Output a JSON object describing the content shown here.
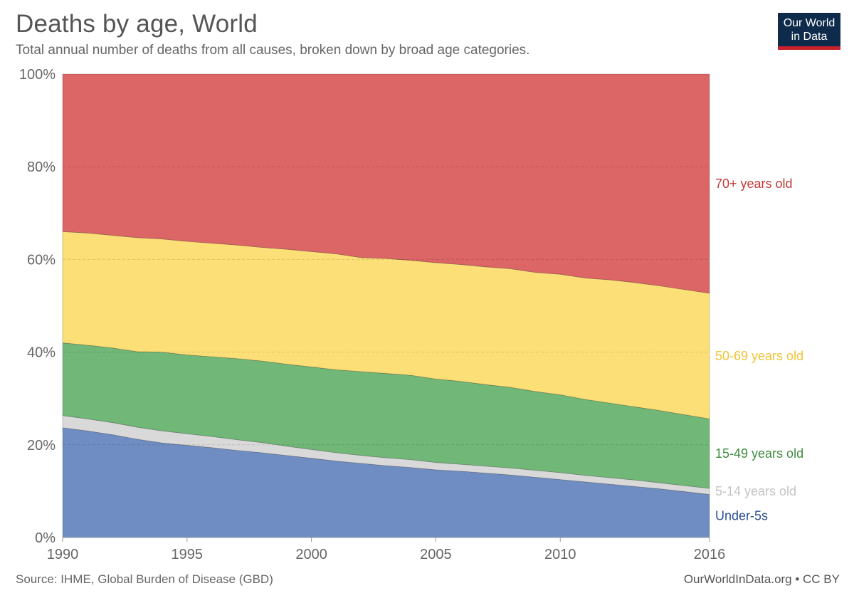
{
  "header": {
    "title": "Deaths by age, World",
    "subtitle": "Total annual number of deaths from all causes, broken down by broad age categories."
  },
  "logo": {
    "line1": "Our World",
    "line2": "in Data"
  },
  "footer": {
    "source": "Source: IHME, Global Burden of Disease (GBD)",
    "credit": "OurWorldInData.org • CC BY"
  },
  "colors": {
    "under5": "#6f8dc2",
    "age5_14": "#d9d9d9",
    "age15_49": "#70b778",
    "age50_69": "#fddf77",
    "age70plus": "#dc6566"
  },
  "chart_data": {
    "type": "area",
    "stacked": true,
    "normalized": true,
    "title": "Deaths by age, World",
    "xlabel": "",
    "ylabel": "",
    "xlim": [
      1990,
      2016
    ],
    "ylim": [
      0,
      100
    ],
    "x": [
      1990,
      1991,
      1992,
      1993,
      1994,
      1995,
      1996,
      1997,
      1998,
      1999,
      2000,
      2001,
      2002,
      2003,
      2004,
      2005,
      2006,
      2007,
      2008,
      2009,
      2010,
      2011,
      2012,
      2013,
      2014,
      2015,
      2016
    ],
    "xticks": [
      "1990",
      "1995",
      "2000",
      "2005",
      "2010",
      "2016"
    ],
    "yticks": [
      "0%",
      "20%",
      "40%",
      "60%",
      "80%",
      "100%"
    ],
    "grid": true,
    "legend": "right",
    "series": [
      {
        "name": "Under-5s",
        "key": "under5",
        "values": [
          23.7,
          23.0,
          22.2,
          21.2,
          20.4,
          19.9,
          19.4,
          18.8,
          18.3,
          17.7,
          17.1,
          16.5,
          16.0,
          15.5,
          15.1,
          14.6,
          14.3,
          13.9,
          13.5,
          13.0,
          12.5,
          12.0,
          11.5,
          11.0,
          10.5,
          9.9,
          9.3
        ]
      },
      {
        "name": "5-14 years old",
        "key": "age5_14",
        "values": [
          2.6,
          2.6,
          2.6,
          2.6,
          2.6,
          2.5,
          2.4,
          2.3,
          2.2,
          2.0,
          1.9,
          1.8,
          1.7,
          1.7,
          1.7,
          1.6,
          1.5,
          1.5,
          1.5,
          1.5,
          1.5,
          1.4,
          1.4,
          1.4,
          1.3,
          1.3,
          1.3
        ]
      },
      {
        "name": "15-49 years old",
        "key": "age15_49",
        "values": [
          15.7,
          15.9,
          16.1,
          16.3,
          17.0,
          17.0,
          17.2,
          17.5,
          17.6,
          17.7,
          17.8,
          17.9,
          18.1,
          18.2,
          18.2,
          18.0,
          17.9,
          17.6,
          17.4,
          17.0,
          16.8,
          16.4,
          16.1,
          15.8,
          15.6,
          15.3,
          15.0
        ]
      },
      {
        "name": "50-69 years old",
        "key": "age50_69",
        "values": [
          24.0,
          24.2,
          24.3,
          24.6,
          24.4,
          24.5,
          24.5,
          24.5,
          24.5,
          24.8,
          24.9,
          25.0,
          24.6,
          24.8,
          24.8,
          25.1,
          25.2,
          25.4,
          25.6,
          25.7,
          26.0,
          26.2,
          26.6,
          26.8,
          26.9,
          27.0,
          27.1
        ]
      },
      {
        "name": "70+ years old",
        "key": "age70plus",
        "values": [
          34.0,
          34.3,
          34.8,
          35.3,
          35.6,
          36.1,
          36.5,
          36.9,
          37.4,
          37.8,
          38.3,
          38.8,
          39.6,
          39.8,
          40.2,
          40.7,
          41.1,
          41.6,
          42.0,
          42.8,
          43.2,
          44.0,
          44.4,
          45.0,
          45.7,
          46.5,
          47.3
        ]
      }
    ],
    "annotations": {
      "labels": [
        "70+ years old",
        "50-69 years old",
        "15-49 years old",
        "5-14 years old",
        "Under-5s"
      ]
    }
  }
}
